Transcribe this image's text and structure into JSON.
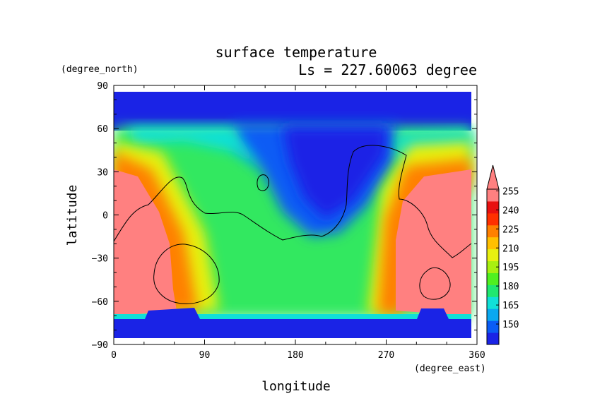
{
  "chart_data": {
    "type": "heatmap",
    "title": "surface temperature",
    "subtitle": "Ls = 227.60063 degree",
    "xlabel": "longitude",
    "ylabel": "latitude",
    "xunits": "(degree_east)",
    "yunits": "(degree_north)",
    "xlim": [
      0,
      360
    ],
    "ylim": [
      -90,
      90
    ],
    "xticks": [
      0,
      90,
      180,
      270,
      360
    ],
    "yticks": [
      90,
      60,
      30,
      0,
      -30,
      -60,
      -90
    ],
    "data_extent": {
      "lon": [
        0,
        357
      ],
      "lat": [
        -87,
        87
      ]
    },
    "colorbar": {
      "levels": [
        150,
        165,
        180,
        195,
        210,
        225,
        240,
        255
      ],
      "extend": "max",
      "colors": [
        "#1a23e6",
        "#0a5cf5",
        "#0aa8f0",
        "#10e0d8",
        "#20e870",
        "#50f020",
        "#a8f010",
        "#e8f010",
        "#ffc000",
        "#ff8000",
        "#ff3000",
        "#e81010",
        "#ff8080"
      ]
    },
    "grid": false,
    "legend": "colorbar-right"
  }
}
